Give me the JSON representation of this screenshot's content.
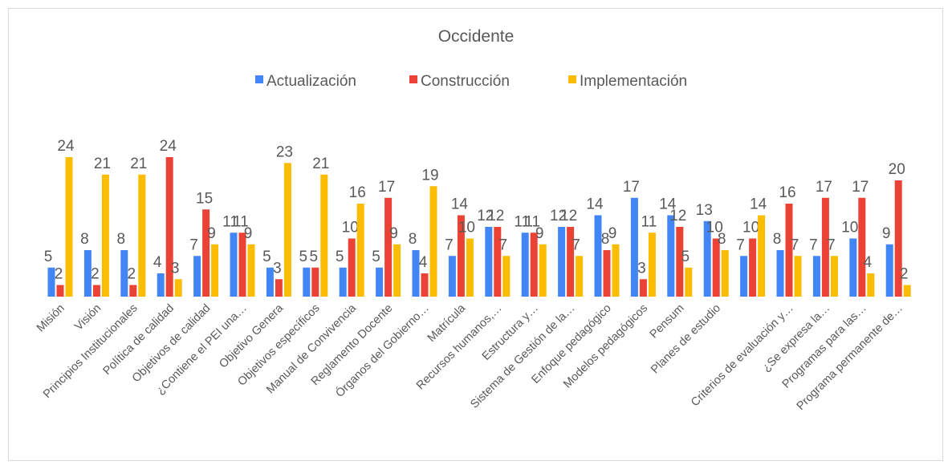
{
  "chart_data": {
    "type": "bar",
    "title": "Occidente",
    "categories": [
      "Misión",
      "Visión",
      "Principios Institucionales",
      "Política de calidad",
      "Objetivos de calidad",
      "¿Contiene el PEI una…",
      "Objetivo Genera",
      "Objetivos específicos",
      "Manual de Convivencia",
      "Reglamento Docente",
      "Órganos del Gobierno…",
      "Matrícula",
      "Recursos humanos,…",
      "Estructura y…",
      "Sistema de Gestión de la…",
      "Enfoque pedagógico",
      "Modelos pedagógicos",
      "Pensum",
      "Planes de estudio",
      null,
      "Criterios de evaluación y…",
      "¿Se expresa la…",
      "Programas para las…",
      "Programa permanente de…"
    ],
    "series": [
      {
        "name": "Actualización",
        "color": "#4285f4",
        "values": [
          5,
          8,
          8,
          4,
          7,
          11,
          5,
          5,
          5,
          5,
          8,
          7,
          12,
          11,
          12,
          14,
          17,
          14,
          13,
          7,
          8,
          7,
          10,
          9
        ]
      },
      {
        "name": "Construcción",
        "color": "#ea4335",
        "values": [
          2,
          2,
          2,
          24,
          15,
          11,
          3,
          5,
          10,
          17,
          4,
          14,
          12,
          11,
          12,
          8,
          3,
          12,
          10,
          10,
          16,
          17,
          17,
          20
        ]
      },
      {
        "name": "Implementación",
        "color": "#fbbc04",
        "values": [
          24,
          21,
          21,
          3,
          9,
          9,
          23,
          21,
          16,
          9,
          19,
          10,
          7,
          9,
          7,
          9,
          11,
          5,
          8,
          14,
          7,
          7,
          4,
          2
        ]
      }
    ],
    "legend": "top"
  }
}
